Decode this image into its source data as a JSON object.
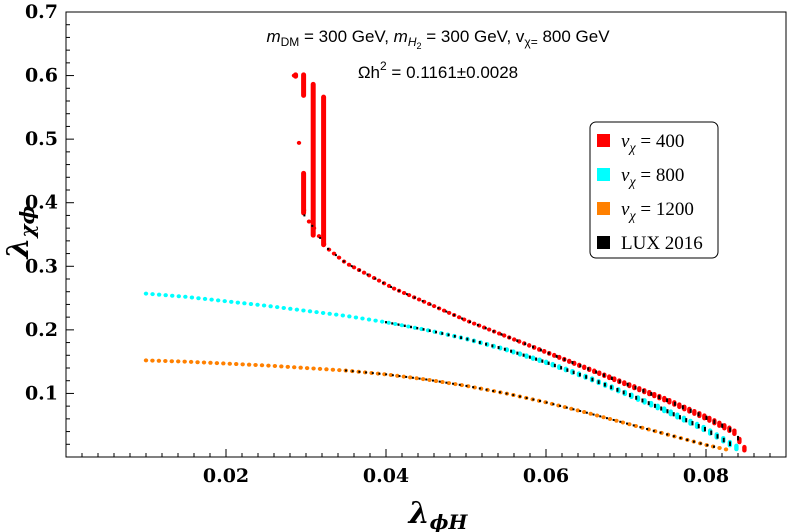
{
  "chart_data": {
    "type": "scatter",
    "title_line1_parts": [
      "m",
      "DM",
      " = 300 GeV, ",
      "m",
      "H",
      "2",
      " = 300 GeV, v",
      "χ=",
      " 800 GeV"
    ],
    "title_line2": "Ωh² = 0.1161±0.0028",
    "title_line2_parts": [
      "Ωh",
      "2",
      " = 0.1161±0.0028"
    ],
    "xlabel": "λϕH",
    "xlabel_parts": [
      "λ",
      "ϕH"
    ],
    "ylabel": "λχϕ",
    "ylabel_parts": [
      "λ",
      "χϕ"
    ],
    "xlim": [
      0.0,
      0.09
    ],
    "ylim": [
      0.0,
      0.7
    ],
    "xticks": [
      0.02,
      0.04,
      0.06,
      0.08
    ],
    "xtick_labels": [
      "0.02",
      "0.04",
      "0.06",
      "0.08"
    ],
    "yticks": [
      0.1,
      0.2,
      0.3,
      0.4,
      0.5,
      0.6,
      0.7
    ],
    "ytick_labels": [
      "0.1",
      "0.2",
      "0.3",
      "0.4",
      "0.5",
      "0.6",
      "0.7"
    ],
    "legend_position": "upper-right",
    "legend": [
      {
        "label": "vχ = 400",
        "symbol": "v",
        "sub": "χ",
        "rest": " = 400",
        "color": "#ff0000"
      },
      {
        "label": "vχ = 800",
        "symbol": "v",
        "sub": "χ",
        "rest": " = 800",
        "color": "#00ffff"
      },
      {
        "label": "vχ = 1200",
        "symbol": "v",
        "sub": "χ",
        "rest": " = 1200",
        "color": "#ff8000"
      },
      {
        "label": "LUX 2016",
        "symbol": "",
        "sub": "",
        "rest": "LUX 2016",
        "color": "#000000"
      }
    ],
    "series": [
      {
        "name": "vχ = 400",
        "color": "#ff0000",
        "band_width": 0.012,
        "points": [
          [
            0.0285,
            0.6
          ],
          [
            0.0298,
            0.38
          ],
          [
            0.031,
            0.36
          ],
          [
            0.0325,
            0.33
          ],
          [
            0.035,
            0.305
          ],
          [
            0.038,
            0.285
          ],
          [
            0.041,
            0.265
          ],
          [
            0.045,
            0.243
          ],
          [
            0.05,
            0.215
          ],
          [
            0.055,
            0.19
          ],
          [
            0.06,
            0.165
          ],
          [
            0.065,
            0.14
          ],
          [
            0.07,
            0.115
          ],
          [
            0.075,
            0.09
          ],
          [
            0.08,
            0.062
          ],
          [
            0.0835,
            0.04
          ],
          [
            0.0848,
            0.013
          ]
        ],
        "vertical_segments": [
          {
            "x": 0.0287,
            "y0": 0.595,
            "y1": 0.605
          },
          {
            "x": 0.0297,
            "y0": 0.565,
            "y1": 0.605
          },
          {
            "x": 0.0297,
            "y0": 0.38,
            "y1": 0.45
          },
          {
            "x": 0.0309,
            "y0": 0.345,
            "y1": 0.59
          },
          {
            "x": 0.0322,
            "y0": 0.33,
            "y1": 0.57
          }
        ]
      },
      {
        "name": "vχ = 800",
        "color": "#00ffff",
        "band_width": 0.012,
        "points": [
          [
            0.01,
            0.257
          ],
          [
            0.015,
            0.252
          ],
          [
            0.02,
            0.245
          ],
          [
            0.025,
            0.238
          ],
          [
            0.03,
            0.23
          ],
          [
            0.035,
            0.222
          ],
          [
            0.04,
            0.212
          ],
          [
            0.045,
            0.2
          ],
          [
            0.05,
            0.186
          ],
          [
            0.055,
            0.169
          ],
          [
            0.06,
            0.149
          ],
          [
            0.065,
            0.126
          ],
          [
            0.07,
            0.1
          ],
          [
            0.075,
            0.073
          ],
          [
            0.08,
            0.043
          ],
          [
            0.0838,
            0.015
          ]
        ]
      },
      {
        "name": "vχ = 1200",
        "color": "#ff8000",
        "band_width": 0.006,
        "points": [
          [
            0.01,
            0.152
          ],
          [
            0.015,
            0.15
          ],
          [
            0.02,
            0.147
          ],
          [
            0.025,
            0.144
          ],
          [
            0.03,
            0.14
          ],
          [
            0.035,
            0.136
          ],
          [
            0.04,
            0.13
          ],
          [
            0.045,
            0.122
          ],
          [
            0.05,
            0.112
          ],
          [
            0.055,
            0.1
          ],
          [
            0.06,
            0.086
          ],
          [
            0.065,
            0.07
          ],
          [
            0.07,
            0.053
          ],
          [
            0.075,
            0.036
          ],
          [
            0.08,
            0.019
          ],
          [
            0.0825,
            0.012
          ]
        ]
      }
    ],
    "lux_overlay": {
      "name": "LUX 2016",
      "color": "#000000",
      "on_series": [
        {
          "series": "vχ = 400",
          "x_from": 0.0298,
          "x_to": 0.084
        },
        {
          "series": "vχ = 800",
          "x_from": 0.04,
          "x_to": 0.083
        },
        {
          "series": "vχ = 1200",
          "x_from": 0.035,
          "x_to": 0.081
        }
      ]
    }
  }
}
